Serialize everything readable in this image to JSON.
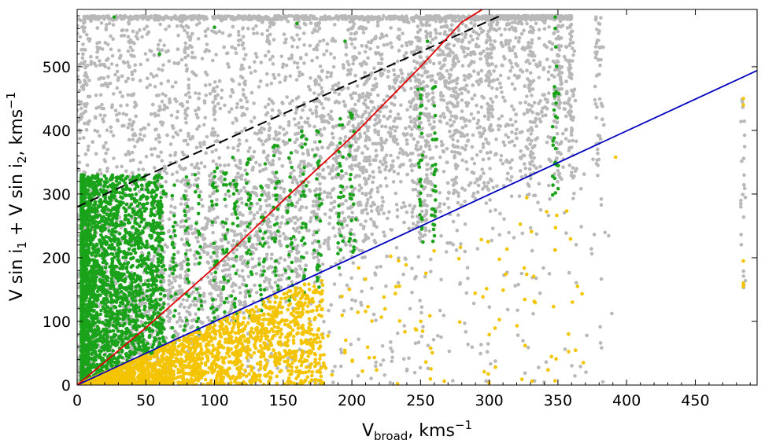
{
  "chart_data": {
    "type": "scatter",
    "title": "",
    "xlabel": {
      "main": "V",
      "sub": "broad",
      "rest": ", kms",
      "sup": "−1"
    },
    "ylabel": {
      "p1": "V sin i",
      "s1": "1",
      "p2": " + V sin i",
      "s2": "2",
      "p3": ", kms",
      "sup": "−1"
    },
    "xlim": [
      0,
      495
    ],
    "ylim": [
      0,
      590
    ],
    "xticks": [
      0,
      50,
      100,
      150,
      200,
      250,
      300,
      350,
      400,
      450
    ],
    "yticks": [
      0,
      100,
      200,
      300,
      400,
      500
    ],
    "grid": false,
    "legend": "none",
    "colors": {
      "gray": "#b8b8b8",
      "green": "#1aa31a",
      "yellow": "#f5c400",
      "red_line": "#e00000",
      "blue_line": "#0000c0",
      "black_dashed": "#000000"
    },
    "lines": [
      {
        "name": "",
        "style": "dashed",
        "color": "#000000",
        "x": [
          0,
          308
        ],
        "y": [
          280,
          580
        ]
      },
      {
        "name": "",
        "style": "solid",
        "color": "#0000c0",
        "x": [
          0,
          495
        ],
        "y": [
          0,
          494
        ]
      },
      {
        "name": "",
        "style": "solid",
        "color": "#e00000",
        "x": [
          0,
          50,
          100,
          150,
          200,
          250,
          280,
          295
        ],
        "y": [
          0,
          90,
          185,
          290,
          390,
          500,
          570,
          590
        ]
      }
    ],
    "series": [
      {
        "name": "",
        "color": "#b8b8b8",
        "description_points": "gray"
      },
      {
        "name": "",
        "color": "#1aa31a",
        "description_points": "green"
      },
      {
        "name": "",
        "color": "#f5c400",
        "description_points": "yellow"
      }
    ]
  }
}
